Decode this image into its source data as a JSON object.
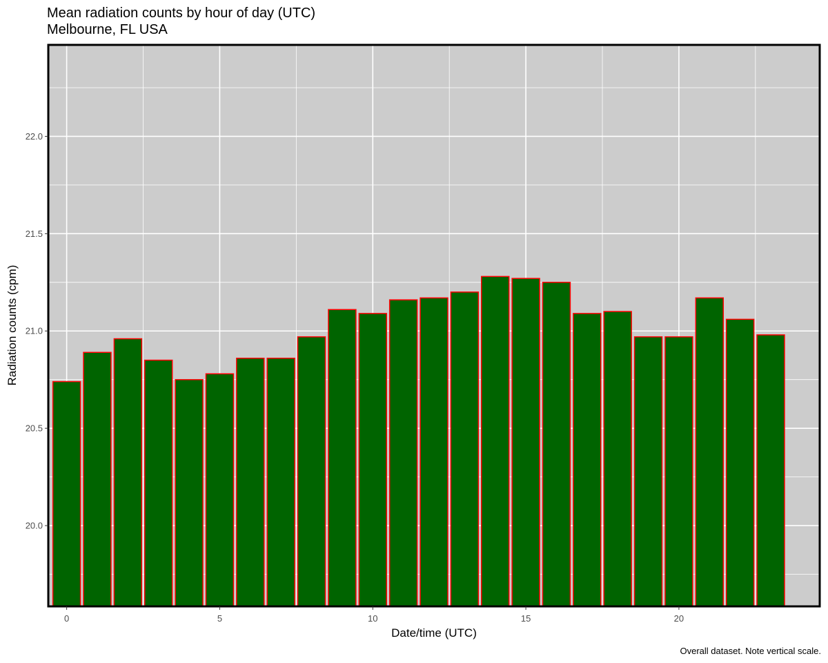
{
  "chart_data": {
    "type": "bar",
    "title": "Mean radiation counts by hour of day (UTC)",
    "subtitle": "Melbourne, FL USA",
    "xlabel": "Date/time (UTC)",
    "ylabel": "Radiation counts (cpm)",
    "caption": "Overall dataset.  Note vertical scale.",
    "x": [
      0,
      1,
      2,
      3,
      4,
      5,
      6,
      7,
      8,
      9,
      10,
      11,
      12,
      13,
      14,
      15,
      16,
      17,
      18,
      19,
      20,
      21,
      22,
      23
    ],
    "values": [
      20.74,
      20.89,
      20.96,
      20.85,
      20.75,
      20.78,
      20.86,
      20.86,
      20.97,
      21.11,
      21.09,
      21.16,
      21.17,
      21.2,
      21.28,
      21.27,
      21.25,
      21.09,
      21.1,
      20.97,
      20.97,
      21.17,
      21.06,
      20.98
    ],
    "xlim": [
      -0.6,
      24.6
    ],
    "ylim": [
      19.585,
      22.47
    ],
    "x_ticks": [
      0,
      5,
      10,
      15,
      20
    ],
    "x_tick_labels": [
      "0",
      "5",
      "10",
      "15",
      "20"
    ],
    "y_ticks": [
      20.0,
      20.5,
      21.0,
      21.5,
      22.0
    ],
    "y_tick_labels": [
      "20.0",
      "20.5",
      "21.0",
      "21.5",
      "22.0"
    ],
    "grid": true,
    "legend": "none",
    "colors": {
      "panel_background": "#cccccc",
      "grid": "#ffffff",
      "bar_fill": "#006400",
      "bar_outline": "#ff0000",
      "panel_border": "#000000"
    }
  }
}
